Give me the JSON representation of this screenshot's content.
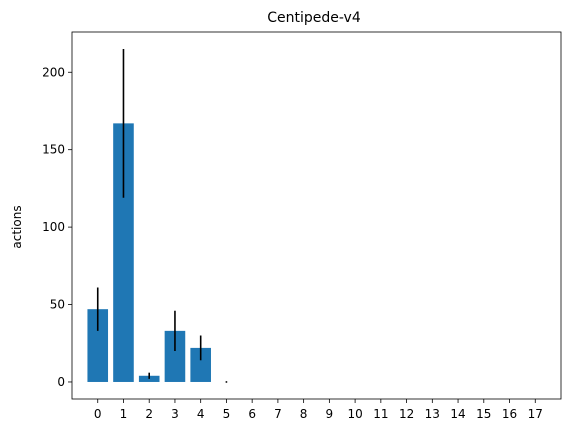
{
  "chart_data": {
    "type": "bar",
    "title": "Centipede-v4",
    "xlabel": "",
    "ylabel": "actions",
    "categories": [
      "0",
      "1",
      "2",
      "3",
      "4",
      "5",
      "6",
      "7",
      "8",
      "9",
      "10",
      "11",
      "12",
      "13",
      "14",
      "15",
      "16",
      "17"
    ],
    "values": [
      47,
      167,
      4,
      33,
      22,
      0,
      0,
      0,
      0,
      0,
      0,
      0,
      0,
      0,
      0,
      0,
      0,
      0
    ],
    "errors": [
      14,
      48,
      2,
      13,
      8,
      0.5,
      0,
      0,
      0,
      0,
      0,
      0,
      0,
      0,
      0,
      0,
      0,
      0
    ],
    "yticks": [
      0,
      50,
      100,
      150,
      200
    ],
    "ylim": [
      -11,
      226
    ],
    "xlim": [
      -1,
      18
    ],
    "grid": false,
    "bar_color": "#1f77b4",
    "error_color": "#000000",
    "axis_color": "#000000"
  }
}
